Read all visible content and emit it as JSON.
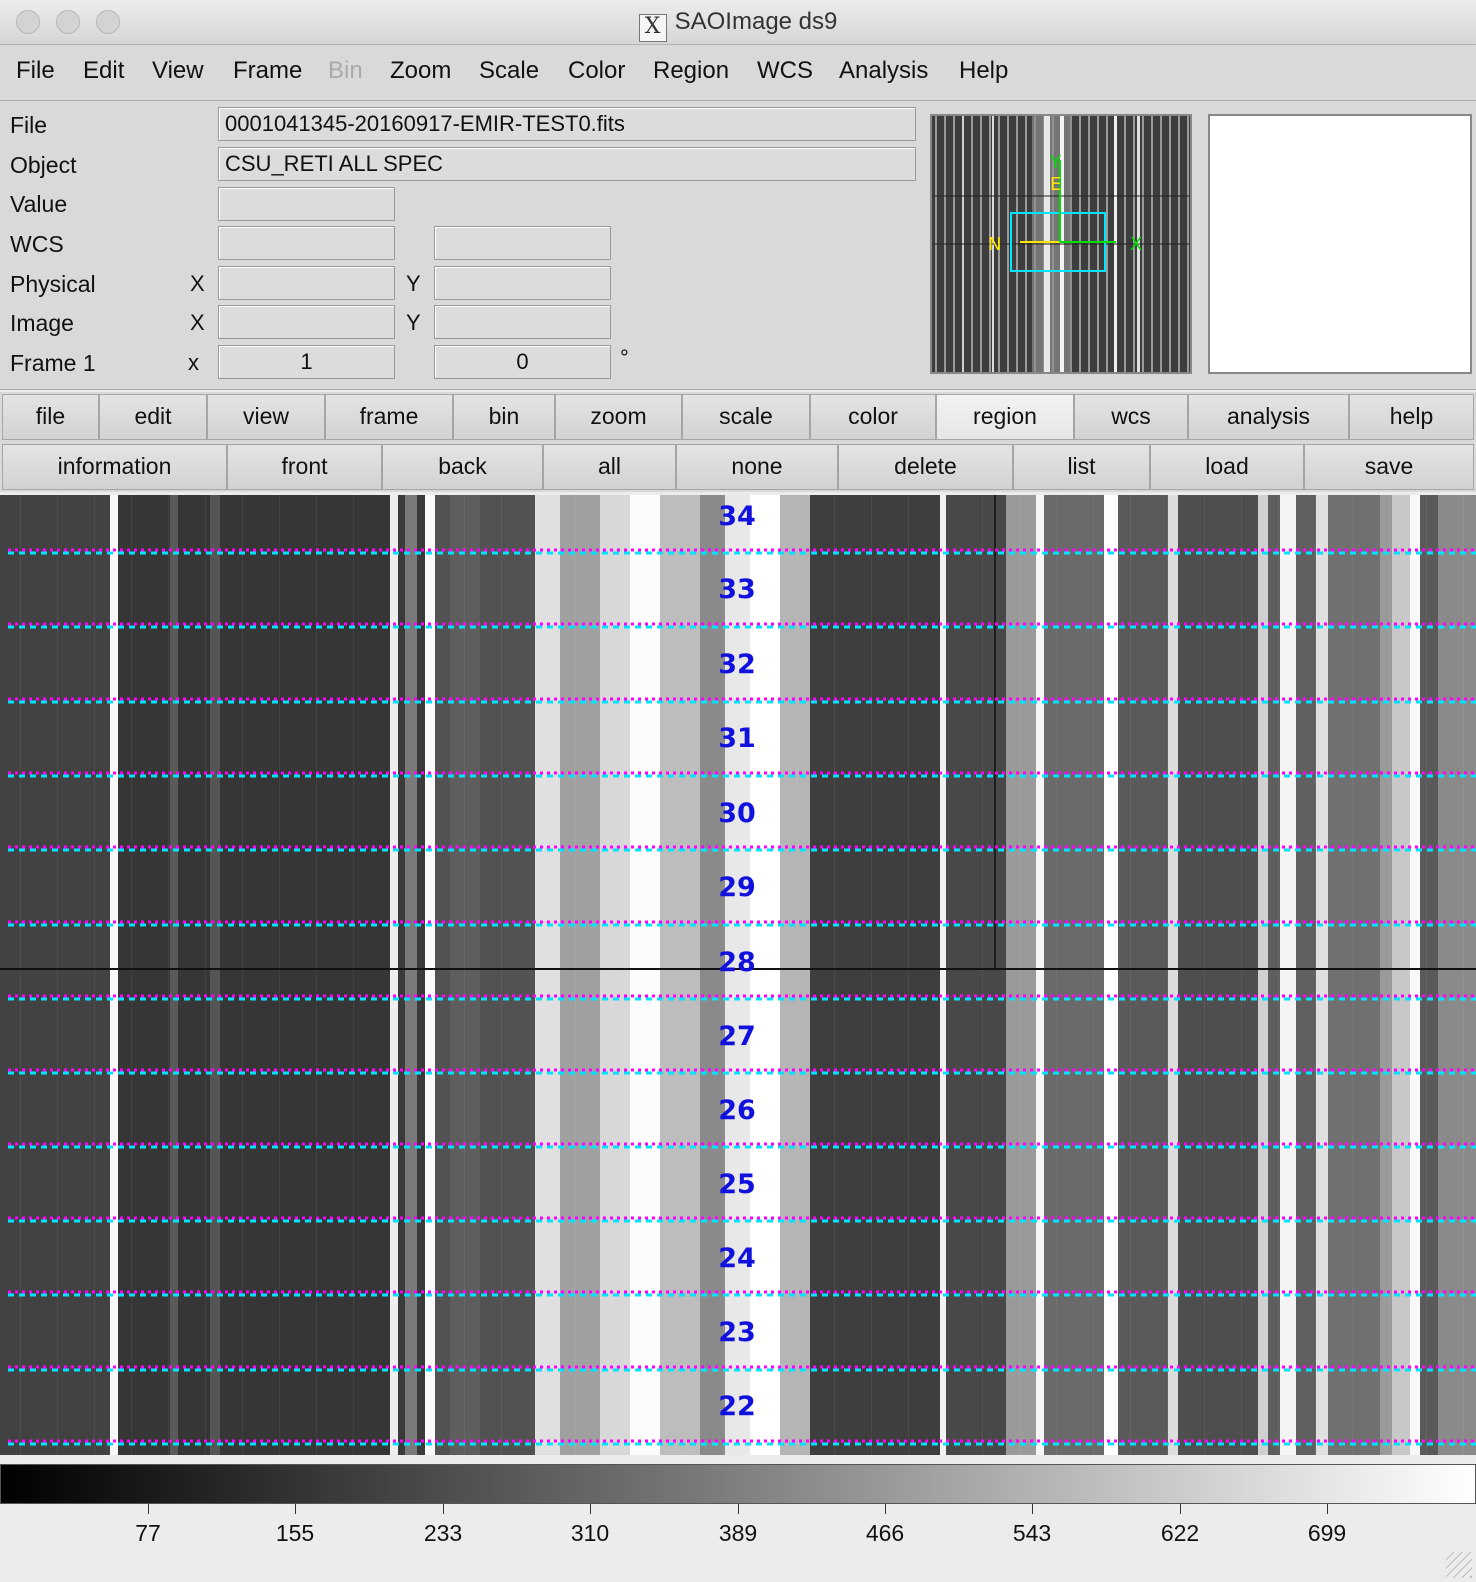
{
  "window": {
    "title": "SAOImage ds9"
  },
  "menubar": [
    "File",
    "Edit",
    "View",
    "Frame",
    "Bin",
    "Zoom",
    "Scale",
    "Color",
    "Region",
    "WCS",
    "Analysis",
    "Help"
  ],
  "menubar_disabled": [
    "Bin"
  ],
  "info": {
    "file_label": "File",
    "file_value": "0001041345-20160917-EMIR-TEST0.fits",
    "object_label": "Object",
    "object_value": "CSU_RETI ALL SPEC",
    "value_label": "Value",
    "value_value": "",
    "wcs_label": "WCS",
    "wcs_value1": "",
    "wcs_value2": "",
    "physical_label": "Physical",
    "physical_x_label": "X",
    "physical_y_label": "Y",
    "physical_x": "",
    "physical_y": "",
    "image_label": "Image",
    "image_x_label": "X",
    "image_y_label": "Y",
    "image_x": "",
    "image_y": "",
    "frame_label": "Frame 1",
    "frame_x_label": "x",
    "frame_zoom": "1",
    "frame_angle": "0",
    "frame_angle_unit": "°"
  },
  "panner": {
    "n_label": "N",
    "e_label": "E",
    "x_label": "X",
    "y_label": "Y"
  },
  "buttonbar": [
    "file",
    "edit",
    "view",
    "frame",
    "bin",
    "zoom",
    "scale",
    "color",
    "region",
    "wcs",
    "analysis",
    "help"
  ],
  "buttonbar_active": "region",
  "region_buttons": [
    "information",
    "front",
    "back",
    "all",
    "none",
    "delete",
    "list",
    "load",
    "save"
  ],
  "slitlets": [
    "34",
    "33",
    "32",
    "31",
    "30",
    "29",
    "28",
    "27",
    "26",
    "25",
    "24",
    "23",
    "22"
  ],
  "colorbar": {
    "ticks": [
      "77",
      "155",
      "233",
      "310",
      "389",
      "466",
      "543",
      "622",
      "699"
    ]
  },
  "colors": {
    "cyan_region": "#00e5ff",
    "magenta_region": "#ff00ff",
    "label_blue": "#1111dd"
  }
}
